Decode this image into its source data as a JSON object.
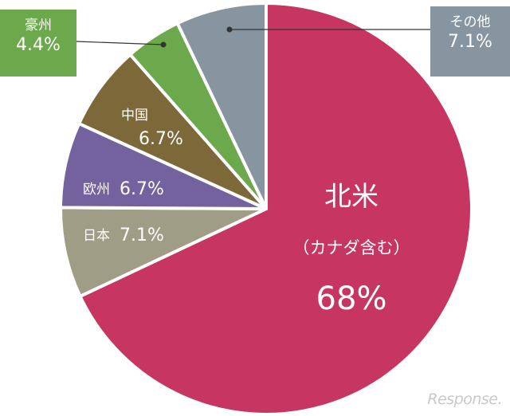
{
  "chart_data": {
    "type": "pie",
    "start": "12 o'clock, clockwise",
    "slices": [
      {
        "name": "北米",
        "note": "（カナダ含む）",
        "value": 68,
        "label": "68%",
        "color": "#c73561"
      },
      {
        "name": "日本",
        "value": 7.1,
        "label": "7.1%",
        "color": "#a09d87"
      },
      {
        "name": "欧州",
        "value": 6.7,
        "label": "6.7%",
        "color": "#74629f"
      },
      {
        "name": "中国",
        "value": 6.7,
        "label": "6.7%",
        "color": "#7d6839"
      },
      {
        "name": "豪州",
        "value": 4.4,
        "label": "4.4%",
        "color": "#6ca84c"
      },
      {
        "name": "その他",
        "value": 7.1,
        "label": "7.1%",
        "color": "#8695a0"
      }
    ]
  },
  "watermark": "Response."
}
